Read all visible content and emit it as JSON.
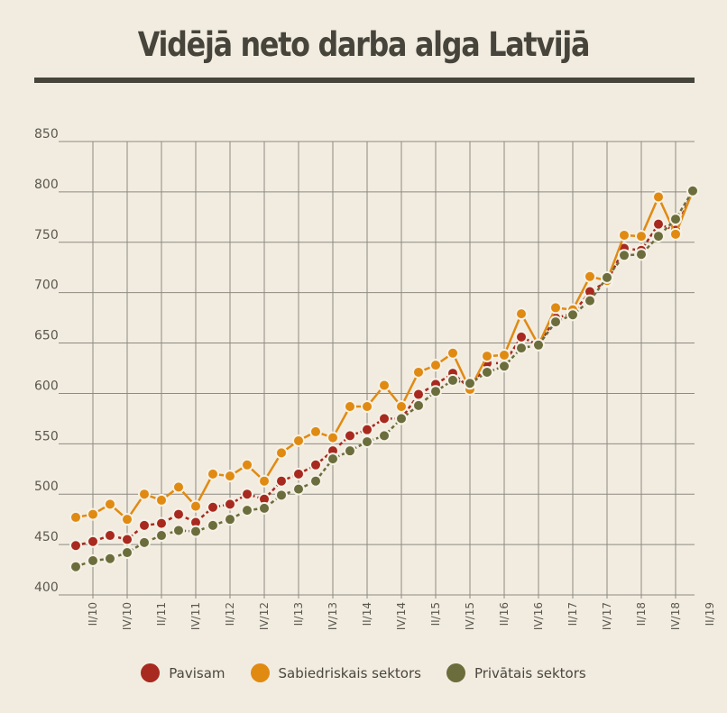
{
  "chart_data": {
    "type": "line",
    "title": "Vidējā neto darba alga Latvijā",
    "xlabel": "",
    "ylabel": "",
    "ylim": [
      400,
      850
    ],
    "yticks": [
      400,
      450,
      500,
      550,
      600,
      650,
      700,
      750,
      800,
      850
    ],
    "x": [
      "I/10",
      "II/10",
      "III/10",
      "IV/10",
      "I/11",
      "II/11",
      "III/11",
      "IV/11",
      "I/12",
      "II/12",
      "III/12",
      "IV/12",
      "I/13",
      "II/13",
      "III/13",
      "IV/13",
      "I/14",
      "II/14",
      "III/14",
      "IV/14",
      "I/15",
      "II/15",
      "III/15",
      "IV/15",
      "I/16",
      "II/16",
      "III/16",
      "IV/16",
      "I/17",
      "II/17",
      "III/17",
      "IV/17",
      "I/18",
      "II/18",
      "III/18",
      "IV/18",
      "I/19"
    ],
    "x_tick_labels": [
      "II/10",
      "IV/10",
      "II/11",
      "IV/11",
      "II/12",
      "IV/12",
      "II/13",
      "IV/13",
      "II/14",
      "IV/14",
      "II/15",
      "IV/15",
      "II/16",
      "IV/16",
      "II/17",
      "IV/17",
      "II/18",
      "IV/18",
      "II/19"
    ],
    "grid": true,
    "legend_position": "bottom",
    "series": [
      {
        "name": "Pavisam",
        "color": "#a8291f",
        "values": [
          449,
          453,
          459,
          455,
          469,
          471,
          480,
          472,
          487,
          490,
          500,
          495,
          513,
          520,
          529,
          543,
          558,
          564,
          575,
          575,
          599,
          609,
          620,
          605,
          630,
          630,
          656,
          648,
          675,
          679,
          701,
          711,
          744,
          742,
          768,
          762,
          801
        ]
      },
      {
        "name": "Sabiedriskais sektors",
        "color": "#e08a12",
        "values": [
          477,
          480,
          490,
          475,
          500,
          494,
          507,
          488,
          520,
          518,
          529,
          513,
          541,
          553,
          562,
          556,
          587,
          587,
          608,
          587,
          621,
          628,
          640,
          604,
          637,
          638,
          679,
          648,
          685,
          683,
          716,
          712,
          757,
          756,
          795,
          758,
          801
        ]
      },
      {
        "name": "Privātais sektors",
        "color": "#6b6d3c",
        "values": [
          428,
          434,
          436,
          442,
          452,
          459,
          464,
          463,
          469,
          475,
          484,
          486,
          499,
          505,
          513,
          535,
          543,
          552,
          558,
          575,
          588,
          602,
          613,
          610,
          621,
          627,
          645,
          648,
          671,
          678,
          692,
          715,
          737,
          738,
          756,
          773,
          801
        ]
      }
    ]
  }
}
